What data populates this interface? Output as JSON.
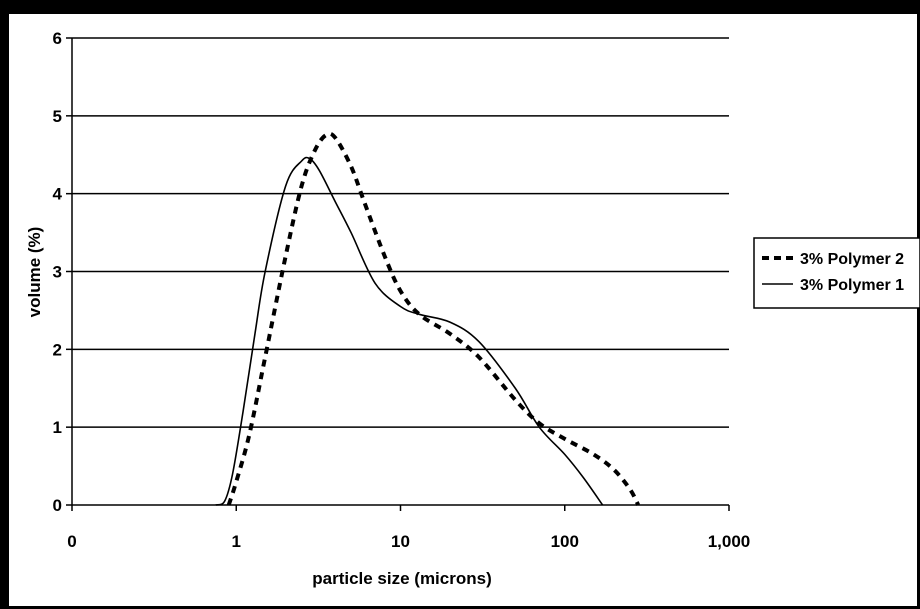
{
  "chart_data": {
    "type": "line",
    "xlabel": "particle size (microns)",
    "ylabel": "volume (%)",
    "x_scale": "log",
    "x_ticks": [
      "0",
      "1",
      "10",
      "100",
      "1,000"
    ],
    "y_ticks": [
      "0",
      "1",
      "2",
      "3",
      "4",
      "5",
      "6"
    ],
    "ylim": [
      0,
      6
    ],
    "grid": "horizontal",
    "legend_position": "right",
    "series": [
      {
        "name": "3% Polymer 2",
        "line_style": "dashed",
        "color": "#000000",
        "points": [
          [
            0.9,
            0
          ],
          [
            1.0,
            0.3
          ],
          [
            1.2,
            0.9
          ],
          [
            1.5,
            1.9
          ],
          [
            2.0,
            3.2
          ],
          [
            2.5,
            4.1
          ],
          [
            3.0,
            4.55
          ],
          [
            3.5,
            4.75
          ],
          [
            4.0,
            4.72
          ],
          [
            5.0,
            4.35
          ],
          [
            6.0,
            3.9
          ],
          [
            8.0,
            3.2
          ],
          [
            10.0,
            2.75
          ],
          [
            13.0,
            2.45
          ],
          [
            20.0,
            2.2
          ],
          [
            30.0,
            1.9
          ],
          [
            50.0,
            1.35
          ],
          [
            70.0,
            1.05
          ],
          [
            100.0,
            0.85
          ],
          [
            150.0,
            0.65
          ],
          [
            200.0,
            0.45
          ],
          [
            250.0,
            0.2
          ],
          [
            280.0,
            0
          ]
        ]
      },
      {
        "name": "3% Polymer 1",
        "line_style": "solid",
        "color": "#000000",
        "points": [
          [
            0.75,
            0
          ],
          [
            0.85,
            0.05
          ],
          [
            0.95,
            0.4
          ],
          [
            1.1,
            1.2
          ],
          [
            1.3,
            2.2
          ],
          [
            1.5,
            3.0
          ],
          [
            2.0,
            4.1
          ],
          [
            2.5,
            4.42
          ],
          [
            2.8,
            4.45
          ],
          [
            3.2,
            4.3
          ],
          [
            4.0,
            3.9
          ],
          [
            5.0,
            3.5
          ],
          [
            7.0,
            2.85
          ],
          [
            10.0,
            2.55
          ],
          [
            13.0,
            2.45
          ],
          [
            20.0,
            2.35
          ],
          [
            30.0,
            2.1
          ],
          [
            50.0,
            1.5
          ],
          [
            70.0,
            1.0
          ],
          [
            100.0,
            0.65
          ],
          [
            130.0,
            0.35
          ],
          [
            170.0,
            0
          ]
        ]
      }
    ]
  }
}
